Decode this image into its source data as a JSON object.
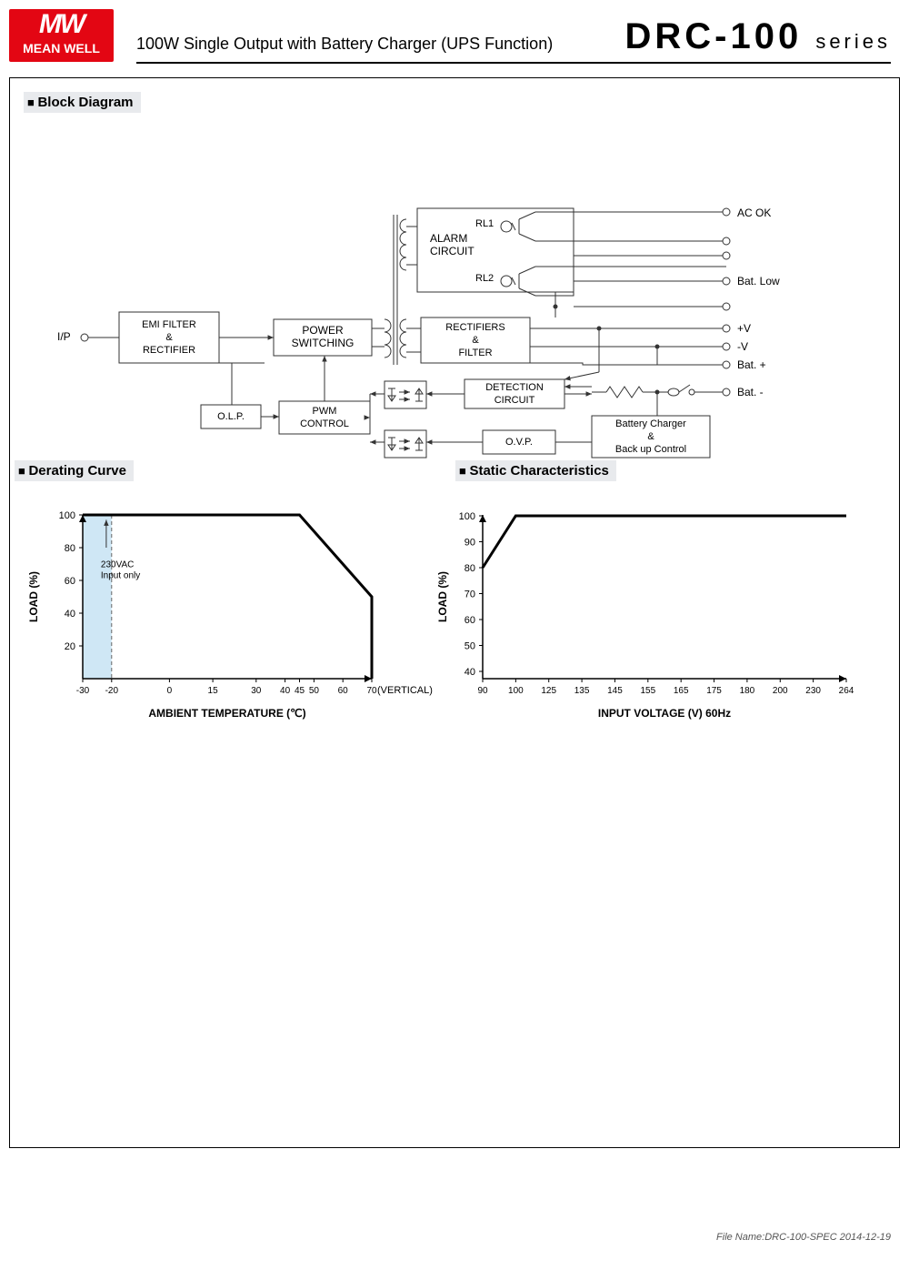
{
  "header": {
    "brand_top": "MW",
    "brand_bottom": "MEAN WELL",
    "subtitle": "100W Single Output with Battery Charger (UPS Function)",
    "model": "DRC-100",
    "series_label": "series"
  },
  "sections": {
    "block": "Block Diagram",
    "derating": "Derating Curve",
    "static": "Static Characteristics"
  },
  "block": {
    "nodes": {
      "ip": "I/P",
      "emi": "EMI FILTER\n&\nRECTIFIER",
      "power": "POWER\nSWITCHING",
      "alarm": "ALARM\nCIRCUIT",
      "rl1": "RL1",
      "rl2": "RL2",
      "rect": "RECTIFIERS\n&\nFILTER",
      "det": "DETECTION\nCIRCUIT",
      "olp": "O.L.P.",
      "pwm": "PWM\nCONTROL",
      "ovp": "O.V.P.",
      "batt": "Battery Charger\n&\nBack up Control"
    },
    "outputs": [
      "AC OK",
      "Bat. Low",
      "+V",
      "-V",
      "Bat. +",
      "Bat. -"
    ],
    "node_stroke": "#333",
    "node_fill": "#fff",
    "wire": "#333",
    "text": "#000",
    "fontsize": 12
  },
  "derating": {
    "ylabel": "LOAD (%)",
    "xlabel": "AMBIENT TEMPERATURE (℃)",
    "yticks": [
      20,
      40,
      60,
      80,
      100
    ],
    "xticks": [
      -30,
      -20,
      0,
      15,
      30,
      40,
      45,
      50,
      60,
      70
    ],
    "note": "230VAC\nInput only",
    "vertical_label": "(VERTICAL)",
    "shade_xrange": [
      -30,
      -20
    ],
    "shade_color": "#cfe7f5",
    "curve": [
      [
        -30,
        100
      ],
      [
        45,
        100
      ],
      [
        70,
        50
      ],
      [
        70,
        0
      ]
    ],
    "axis_color": "#000",
    "line_color": "#000",
    "line_width": 3,
    "fontsize": 11
  },
  "static": {
    "ylabel": "LOAD (%)",
    "xlabel": "INPUT VOLTAGE (V) 60Hz",
    "yticks": [
      40,
      50,
      60,
      70,
      80,
      90,
      100
    ],
    "xticks": [
      90,
      100,
      125,
      135,
      145,
      155,
      165,
      175,
      180,
      200,
      230,
      264
    ],
    "curve": [
      [
        90,
        80
      ],
      [
        100,
        100
      ],
      [
        264,
        100
      ]
    ],
    "axis_color": "#000",
    "line_color": "#000",
    "line_width": 3,
    "fontsize": 11
  },
  "footer": {
    "text": "File Name:DRC-100-SPEC   2014-12-19"
  }
}
